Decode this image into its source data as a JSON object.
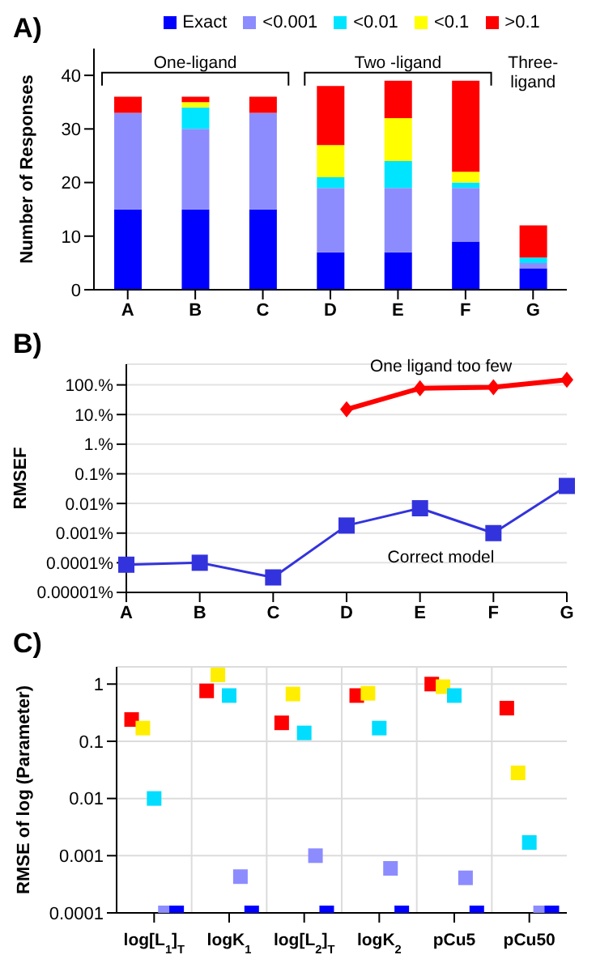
{
  "chart_data": [
    {
      "type": "bar",
      "title": "A)",
      "ylabel": "Number of Responses",
      "categories": [
        "A",
        "B",
        "C",
        "D",
        "E",
        "F",
        "G"
      ],
      "stacked": true,
      "legend": "top",
      "ylim": [
        0,
        45
      ],
      "yticks": [
        0,
        10,
        20,
        30,
        40
      ],
      "series": [
        {
          "name": "Exact",
          "color": "#0000ff",
          "values": [
            15,
            15,
            15,
            7,
            7,
            9,
            4
          ]
        },
        {
          "name": "<0.001",
          "color": "#8c8cff",
          "values": [
            18,
            15,
            18,
            12,
            12,
            10,
            1
          ]
        },
        {
          "name": "<0.01",
          "color": "#00e5ff",
          "values": [
            0,
            4,
            0,
            2,
            5,
            1,
            1
          ]
        },
        {
          "name": "<0.1",
          "color": "#ffff00",
          "values": [
            0,
            1,
            0,
            6,
            8,
            2,
            0
          ]
        },
        {
          "name": ">0.1",
          "color": "#ff0000",
          "values": [
            3,
            1,
            3,
            11,
            7,
            17,
            6
          ]
        }
      ],
      "annotations": [
        "One-ligand",
        "Two -ligand",
        "Three-ligand"
      ]
    },
    {
      "type": "line",
      "title": "B)",
      "ylabel": "RMSEF",
      "categories": [
        "A",
        "B",
        "C",
        "D",
        "E",
        "F",
        "G"
      ],
      "log": "y",
      "grid": "y",
      "line_style": "solid",
      "ylim": [
        1e-05,
        500
      ],
      "yticks": [
        {
          "value": 1e-05,
          "label": "0.00001%"
        },
        {
          "value": 0.0001,
          "label": "0.0001%"
        },
        {
          "value": 0.001,
          "label": "0.001%"
        },
        {
          "value": 0.01,
          "label": "0.01%"
        },
        {
          "value": 0.1,
          "label": "0.1%"
        },
        {
          "value": 1,
          "label": "1.%"
        },
        {
          "value": 10,
          "label": "10.%"
        },
        {
          "value": 100,
          "label": "100.%"
        }
      ],
      "series": [
        {
          "name": "One ligand too few",
          "color": "#ff0000",
          "marker": "diamond",
          "values": [
            null,
            null,
            null,
            15,
            77,
            83,
            150
          ]
        },
        {
          "name": "Correct model",
          "color": "#3333dd",
          "marker": "square",
          "values": [
            8.6e-05,
            0.0001,
            3.2e-05,
            0.0018,
            0.0069,
            0.001,
            0.039
          ]
        }
      ]
    },
    {
      "type": "scatter",
      "title": "C)",
      "ylabel": "RMSE of log (Parameter)",
      "categories": [
        "log[L$_{1}$]$_{T}$",
        "logK$_{1}$",
        "log[L$_{2}$]$_{T}$",
        "logK$_{2}$",
        "pCu5",
        "pCu50"
      ],
      "log": "y",
      "grid": true,
      "marker": "square",
      "ylim": [
        0.0001,
        2
      ],
      "yticks": [
        0.0001,
        0.001,
        0.01,
        0.1,
        1
      ],
      "series": [
        {
          "color": "#ff0000",
          "values": [
            0.24,
            0.76,
            0.21,
            0.63,
            1.0,
            0.38
          ]
        },
        {
          "color": "#ffee00",
          "values": [
            0.17,
            1.45,
            0.67,
            0.69,
            0.9,
            0.028
          ]
        },
        {
          "color": "#00ddff",
          "values": [
            0.01,
            0.63,
            0.14,
            0.17,
            0.63,
            0.0017
          ]
        },
        {
          "color": "#8c8cff",
          "values": [
            0.0001,
            0.00043,
            0.001,
            0.0006,
            0.00041,
            0.0001
          ]
        },
        {
          "color": "#0000ff",
          "values": [
            0.0001,
            0.0001,
            0.0001,
            0.0001,
            0.0001,
            0.0001
          ]
        }
      ]
    }
  ]
}
